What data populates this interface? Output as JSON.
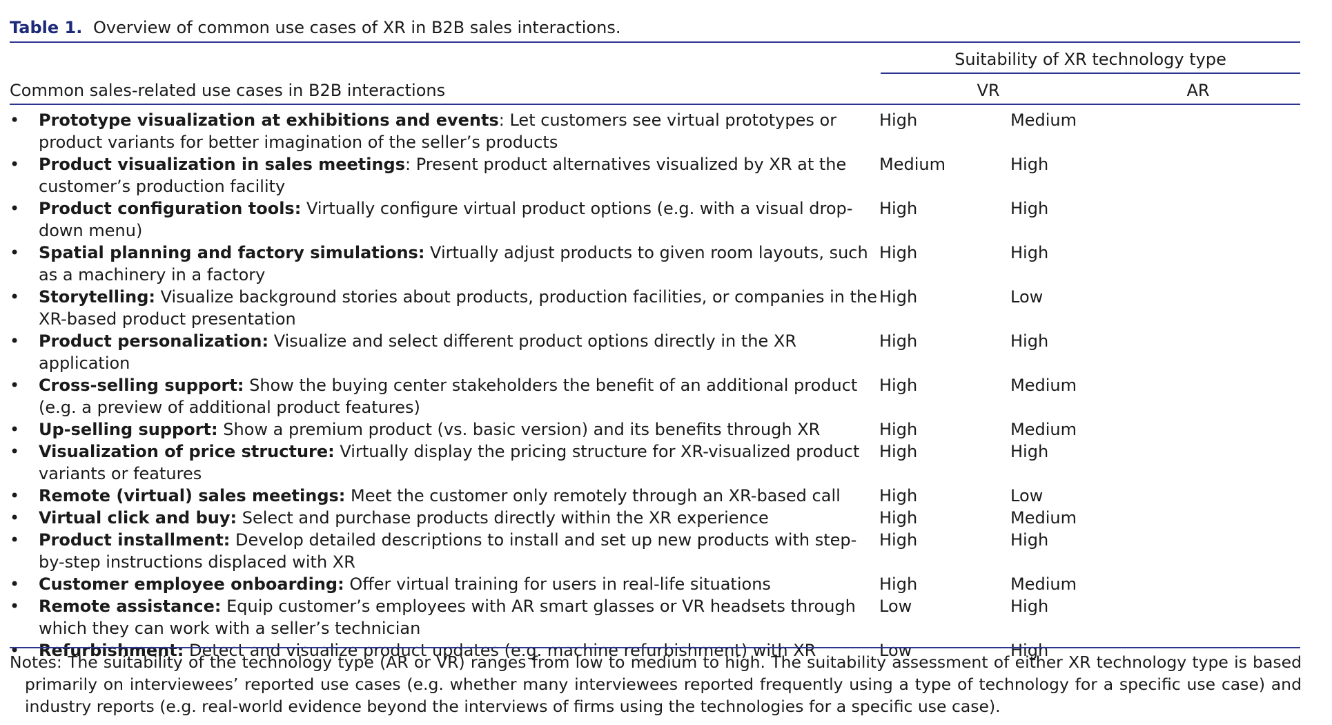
{
  "caption": {
    "label": "Table 1.",
    "text": "Overview of common use cases of XR in B2B sales interactions."
  },
  "header": {
    "group_label": "Suitability of XR technology type",
    "usecase_label": "Common sales-related use cases in B2B interactions",
    "vr_label": "VR",
    "ar_label": "AR"
  },
  "bullet": "•",
  "rows": [
    {
      "title": "Prototype visualization at exhibitions and events",
      "desc": ": Let customers see virtual prototypes or product variants for better imagination of the seller’s products",
      "vr": "High",
      "ar": "Medium"
    },
    {
      "title": "Product visualization in sales meetings",
      "desc": ": Present product alternatives visualized by XR at the customer’s production facility",
      "vr": "Medium",
      "ar": "High"
    },
    {
      "title": "Product configuration tools:",
      "desc": " Virtually configure virtual product options (e.g. with a visual drop-down menu)",
      "vr": "High",
      "ar": "High"
    },
    {
      "title": "Spatial planning and factory simulations:",
      "desc": " Virtually adjust products to given room layouts, such as a machinery in a factory",
      "vr": "High",
      "ar": "High"
    },
    {
      "title": "Storytelling:",
      "desc": " Visualize background stories about products, production facilities, or companies in the XR-based product presentation",
      "vr": "High",
      "ar": "Low"
    },
    {
      "title": "Product personalization:",
      "desc": " Visualize and select different product options directly in the XR application",
      "vr": "High",
      "ar": "High"
    },
    {
      "title": "Cross-selling support:",
      "desc": " Show the buying center stakeholders the benefit of an additional product (e.g. a preview of additional product features)",
      "vr": "High",
      "ar": "Medium"
    },
    {
      "title": "Up-selling support:",
      "desc": " Show a premium product (vs. basic version) and its benefits through XR",
      "vr": "High",
      "ar": "Medium"
    },
    {
      "title": "Visualization of price structure:",
      "desc": " Virtually display the pricing structure for XR-visualized product variants or features",
      "vr": "High",
      "ar": "High"
    },
    {
      "title": "Remote (virtual) sales meetings:",
      "desc": " Meet the customer only remotely through an XR-based call",
      "vr": "High",
      "ar": "Low"
    },
    {
      "title": "Virtual click and buy:",
      "desc": " Select and purchase products directly within the XR experience",
      "vr": "High",
      "ar": "Medium"
    },
    {
      "title": "Product installment:",
      "desc": " Develop detailed descriptions to install and set up new products with step-by-step instructions displaced with XR",
      "vr": "High",
      "ar": "High"
    },
    {
      "title": "Customer employee onboarding:",
      "desc": " Offer virtual training for users in real-life situations",
      "vr": "High",
      "ar": "Medium"
    },
    {
      "title": "Remote assistance:",
      "desc": " Equip customer’s employees with AR smart glasses or VR headsets through which they can work with a seller’s technician",
      "vr": "Low",
      "ar": "High"
    },
    {
      "title": "Refurbishment:",
      "desc": " Detect and visualize product updates (e.g. machine refurbishment) with XR",
      "vr": "Low",
      "ar": "High"
    }
  ],
  "notes": "Notes: The suitability of the technology type (AR or VR) ranges from low to medium to high. The suitability assessment of either XR technology type is based primarily on interviewees’ reported use cases (e.g. whether many interviewees reported frequently using a type of technology for a specific use case) and industry reports (e.g. real-world evidence beyond the interviews of firms using the technologies for a specific use case).",
  "colors": {
    "rule": "#2d3590",
    "caption_label": "#1c2a78"
  }
}
